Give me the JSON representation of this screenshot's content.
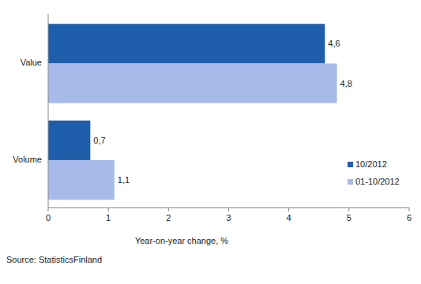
{
  "chart_data": {
    "type": "bar",
    "orientation": "horizontal",
    "categories": [
      "Value",
      "Volume"
    ],
    "series": [
      {
        "name": "10/2012",
        "color": "#1f5eab",
        "values": [
          4.6,
          0.7
        ],
        "value_labels": [
          "4,6",
          "0,7"
        ]
      },
      {
        "name": "01-10/2012",
        "color": "#a8bae9",
        "values": [
          4.8,
          1.1
        ],
        "value_labels": [
          "4,8",
          "1,1"
        ]
      }
    ],
    "xlim": [
      0,
      6
    ],
    "xticks": [
      0,
      1,
      2,
      3,
      4,
      5,
      6
    ],
    "x_label": "Year-on-year change, %",
    "source": "Source: StatisticsFinland",
    "data_labels": true,
    "legend": "lower right",
    "grid": false
  }
}
